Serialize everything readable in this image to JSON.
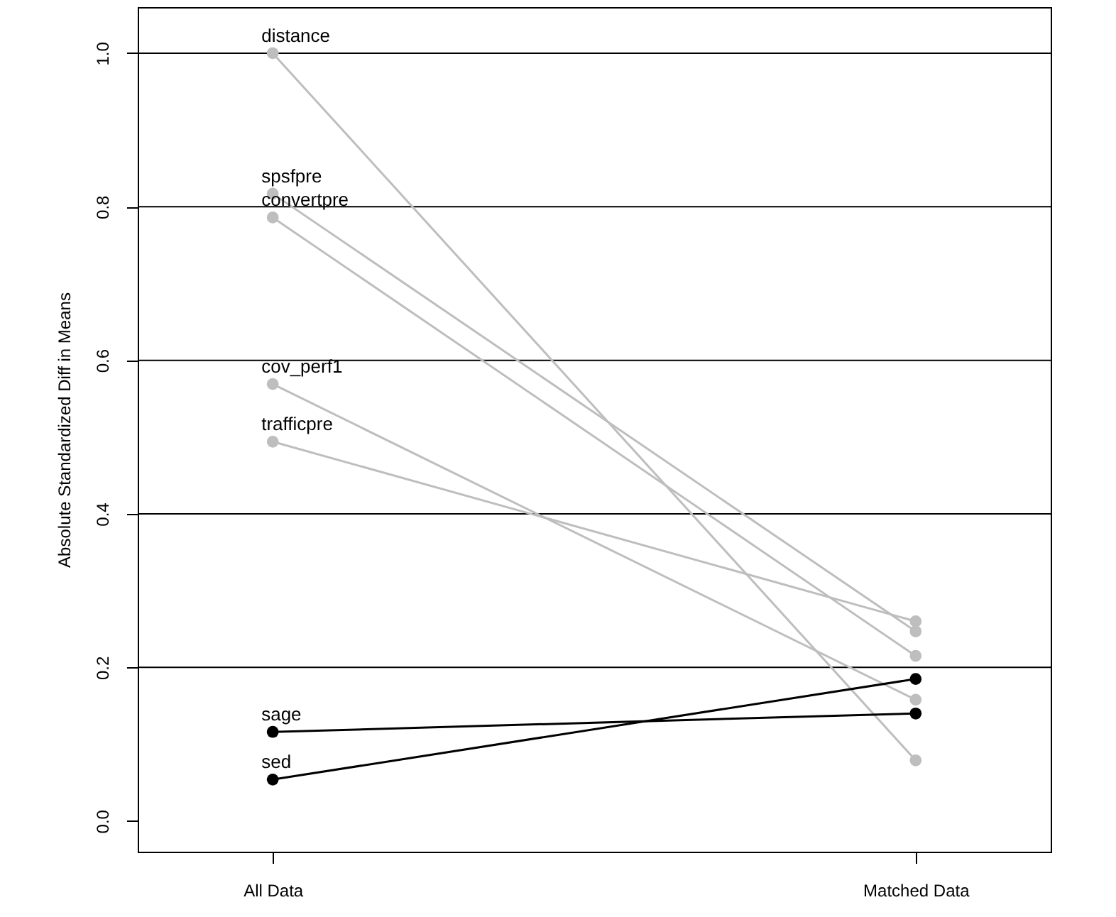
{
  "chart_data": {
    "type": "line",
    "ylabel": "Absolute Standardized Diff in Means",
    "categories": [
      "All Data",
      "Matched Data"
    ],
    "ylim": [
      -0.04,
      1.06
    ],
    "yticks": [
      {
        "value": 0,
        "label": "0.0"
      },
      0.2,
      0.4,
      0.6,
      0.8,
      {
        "value": 1,
        "label": "1.0"
      }
    ],
    "marker": "circle",
    "ref_lines": [
      {
        "axis": "y",
        "value": 0.2
      },
      {
        "axis": "y",
        "value": 0.4
      },
      {
        "axis": "y",
        "value": 0.6
      },
      {
        "axis": "y",
        "value": 0.8
      },
      {
        "axis": "y",
        "value": 1.0
      }
    ],
    "series": [
      {
        "name": "distance",
        "color": "#bebebe",
        "values": [
          1.0,
          0.079
        ]
      },
      {
        "name": "spsfpre",
        "color": "#bebebe",
        "values": [
          0.817,
          0.247
        ]
      },
      {
        "name": "convertpre",
        "color": "#bebebe",
        "values": [
          0.786,
          0.215
        ]
      },
      {
        "name": "cov_perf1",
        "color": "#bebebe",
        "values": [
          0.569,
          0.158
        ]
      },
      {
        "name": "trafficpre",
        "color": "#bebebe",
        "values": [
          0.494,
          0.26
        ]
      },
      {
        "name": "sage",
        "color": "#000000",
        "values": [
          0.116,
          0.14
        ]
      },
      {
        "name": "sed",
        "color": "#000000",
        "values": [
          0.054,
          0.185
        ]
      }
    ]
  }
}
